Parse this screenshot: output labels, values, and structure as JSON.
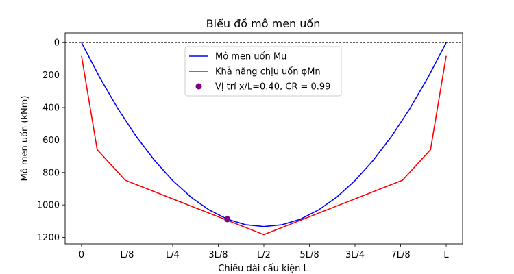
{
  "chart_data": {
    "type": "line",
    "title": "Biểu đồ mô men uốn",
    "xlabel": "Chiều dài cấu kiện L",
    "ylabel": "Mô men uốn (kNm)",
    "x_ticks": [
      {
        "value": 0,
        "label": "0"
      },
      {
        "value": 0.125,
        "label": "L/8"
      },
      {
        "value": 0.25,
        "label": "L/4"
      },
      {
        "value": 0.375,
        "label": "3L/8"
      },
      {
        "value": 0.5,
        "label": "L/2"
      },
      {
        "value": 0.625,
        "label": "5L/8"
      },
      {
        "value": 0.75,
        "label": "3L/4"
      },
      {
        "value": 0.875,
        "label": "7L/8"
      },
      {
        "value": 1.0,
        "label": "L"
      }
    ],
    "y_ticks": [
      0,
      200,
      400,
      600,
      800,
      1000,
      1200
    ],
    "xlim": [
      -0.045,
      1.045
    ],
    "ylim": [
      1240,
      -60
    ],
    "y_inverted": true,
    "grid": false,
    "zero_line": true,
    "legend_position": "top-center",
    "series": [
      {
        "name": "Mô men uốn Mu",
        "color": "#0000ff",
        "x": [
          0,
          0.05,
          0.1,
          0.15,
          0.2,
          0.25,
          0.3,
          0.35,
          0.4,
          0.45,
          0.5,
          0.55,
          0.6,
          0.65,
          0.7,
          0.75,
          0.8,
          0.85,
          0.9,
          0.95,
          1.0
        ],
        "values": [
          0,
          215,
          408,
          578,
          725,
          850,
          952,
          1031,
          1088,
          1122,
          1133,
          1122,
          1088,
          1031,
          952,
          850,
          725,
          578,
          408,
          215,
          0
        ]
      },
      {
        "name": "Khả năng chịu uốn φMn",
        "color": "#ff0000",
        "x": [
          0,
          0.043,
          0.12,
          0.5,
          0.88,
          0.957,
          1.0
        ],
        "values": [
          82,
          660,
          848,
          1183,
          848,
          660,
          82
        ]
      }
    ],
    "marker": {
      "name": "Vị trí x/L=0.40, CR = 0.99",
      "color": "#800080",
      "x": 0.4,
      "y": 1088
    }
  }
}
